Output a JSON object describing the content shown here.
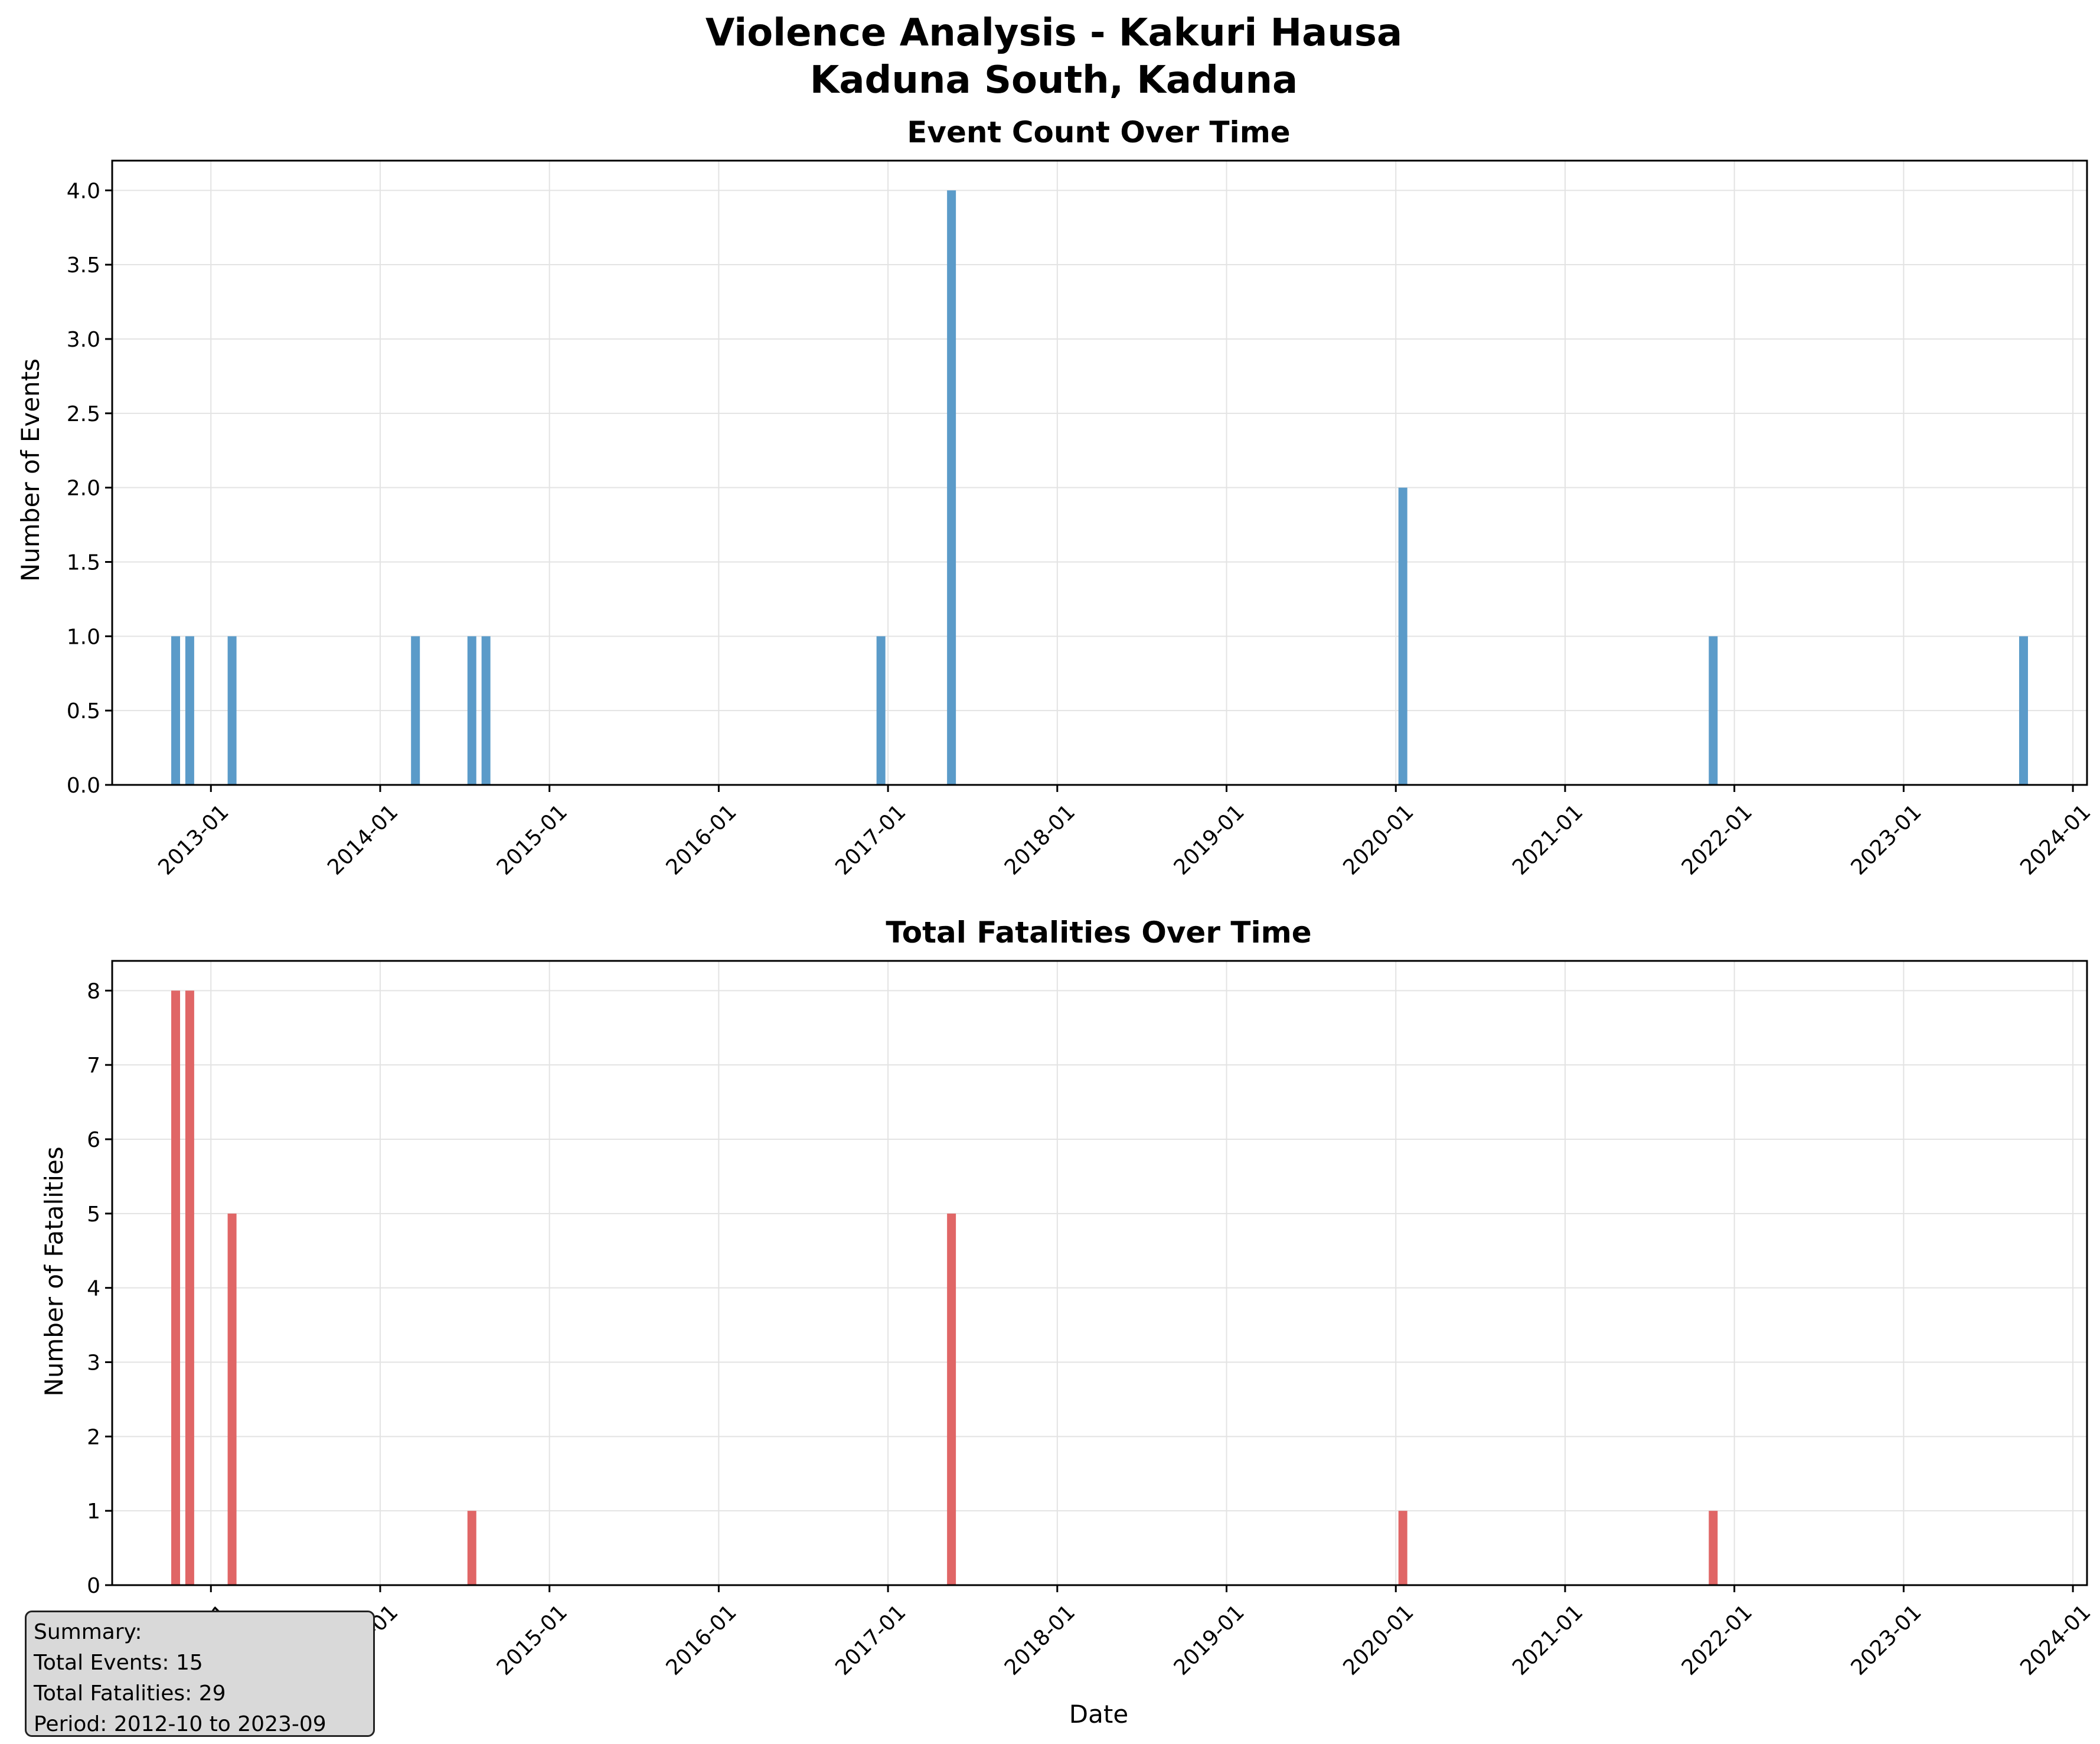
{
  "figure": {
    "title_line1": "Violence Analysis - Kakuri Hausa",
    "title_line2": "Kaduna South, Kaduna"
  },
  "summary": {
    "heading": "Summary:",
    "total_events": "Total Events: 15",
    "total_fatalities": "Total Fatalities: 29",
    "period": "Period: 2012-10 to 2023-09"
  },
  "colors": {
    "events_bar": "#5b9bc9",
    "fatalities_bar": "#e06666",
    "grid": "#e3e3e3",
    "axis": "#000000"
  },
  "chart_data": [
    {
      "type": "bar",
      "title": "Event Count Over Time",
      "xlabel": "",
      "ylabel": "Number of Events",
      "ylim": [
        0,
        4.2
      ],
      "yticks": [
        "0.0",
        "0.5",
        "1.0",
        "1.5",
        "2.0",
        "2.5",
        "3.0",
        "3.5",
        "4.0"
      ],
      "ytick_values": [
        0,
        0.5,
        1,
        1.5,
        2,
        2.5,
        3,
        3.5,
        4
      ],
      "xlim": [
        "2012-06",
        "2024-02"
      ],
      "xticks": [
        "2013-01",
        "2014-01",
        "2015-01",
        "2016-01",
        "2017-01",
        "2018-01",
        "2019-01",
        "2020-01",
        "2021-01",
        "2022-01",
        "2023-01",
        "2024-01"
      ],
      "grid": true,
      "x": [
        "2012-10",
        "2012-11",
        "2013-02",
        "2014-03",
        "2014-07",
        "2014-08",
        "2016-12",
        "2017-05",
        "2020-01",
        "2021-11",
        "2023-09"
      ],
      "values": [
        1,
        1,
        1,
        1,
        1,
        1,
        1,
        4,
        2,
        1,
        1
      ]
    },
    {
      "type": "bar",
      "title": "Total Fatalities Over Time",
      "xlabel": "Date",
      "ylabel": "Number of Fatalities",
      "ylim": [
        0,
        8.4
      ],
      "yticks": [
        "0",
        "1",
        "2",
        "3",
        "4",
        "5",
        "6",
        "7",
        "8"
      ],
      "ytick_values": [
        0,
        1,
        2,
        3,
        4,
        5,
        6,
        7,
        8
      ],
      "xlim": [
        "2012-06",
        "2024-02"
      ],
      "xticks": [
        "2013-01",
        "2014-01",
        "2015-01",
        "2016-01",
        "2017-01",
        "2018-01",
        "2019-01",
        "2020-01",
        "2021-01",
        "2022-01",
        "2023-01",
        "2024-01"
      ],
      "grid": true,
      "x": [
        "2012-10",
        "2012-11",
        "2013-02",
        "2014-03",
        "2014-07",
        "2014-08",
        "2016-12",
        "2017-05",
        "2020-01",
        "2021-11",
        "2023-09"
      ],
      "values": [
        8,
        8,
        5,
        0,
        1,
        0,
        0,
        5,
        1,
        1,
        0
      ]
    }
  ]
}
